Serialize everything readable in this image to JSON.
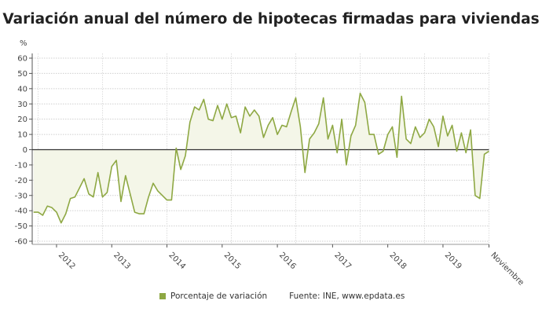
{
  "title": "Variación anual del número de hipotecas firmadas para viviendas",
  "chart_data": {
    "type": "area",
    "title": "Variación anual del número de hipotecas firmadas para viviendas",
    "ylabel": "%",
    "xlabel": "",
    "ylim": [
      -60,
      60
    ],
    "yticks": [
      60,
      50,
      40,
      30,
      20,
      10,
      0,
      -10,
      -20,
      -30,
      -40,
      -50,
      -60
    ],
    "xtick_labels": [
      "2012",
      "2013",
      "2014",
      "2015",
      "2016",
      "2017",
      "2018",
      "2019",
      "Noviembre"
    ],
    "x_start": "2011-08",
    "x_end": "2019-11",
    "frequency": "monthly",
    "grid": true,
    "legend_position": "bottom",
    "series": [
      {
        "name": "Porcentaje de variación",
        "color": "#8ea843",
        "values": [
          -41,
          -41,
          -43,
          -37,
          -38,
          -41,
          -48,
          -42,
          -32,
          -31,
          -25,
          -19,
          -29,
          -31,
          -15,
          -31,
          -28,
          -11,
          -7,
          -34,
          -17,
          -29,
          -41,
          -42,
          -42,
          -31,
          -22,
          -27,
          -30,
          -33,
          -33,
          1,
          -13,
          -4,
          18,
          28,
          26,
          33,
          20,
          19,
          29,
          20,
          30,
          21,
          22,
          11,
          28,
          22,
          26,
          22,
          8,
          16,
          21,
          10,
          16,
          15,
          25,
          34,
          15,
          -15,
          7,
          11,
          17,
          34,
          7,
          16,
          -2,
          20,
          -10,
          9,
          16,
          37,
          31,
          10,
          10,
          -3,
          -1,
          10,
          15,
          -5,
          35,
          7,
          4,
          15,
          8,
          11,
          20,
          15,
          2,
          22,
          9,
          16,
          -1,
          11,
          -2,
          13,
          -30,
          -32,
          -3,
          -1
        ]
      }
    ]
  },
  "legend": {
    "series_label": "Porcentaje de variación",
    "source": "Fuente: INE, www.epdata.es"
  }
}
